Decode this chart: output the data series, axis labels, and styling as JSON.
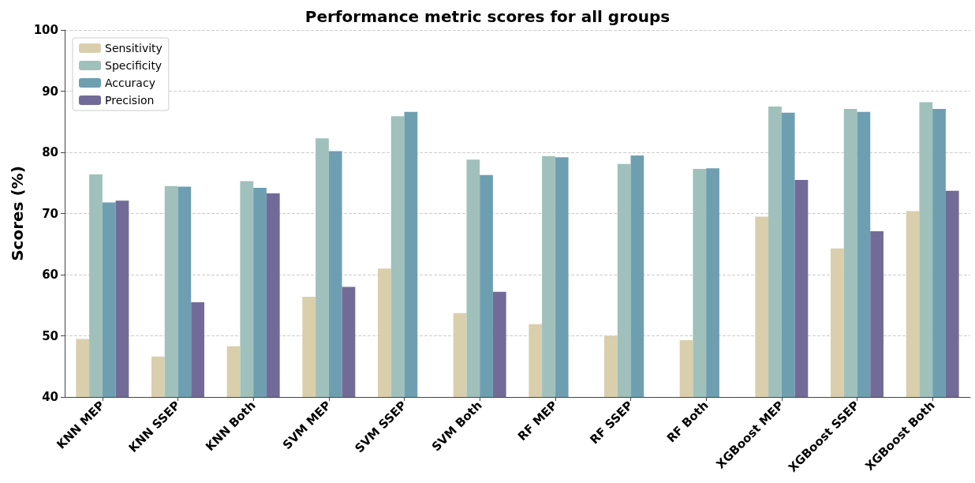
{
  "chart_data": {
    "type": "bar",
    "title": "Performance metric scores for all groups",
    "ylabel": "Scores (%)",
    "categories": [
      "KNN MEP",
      "KNN SSEP",
      "KNN Both",
      "SVM MEP",
      "SVM SSEP",
      "SVM Both",
      "RF MEP",
      "RF SSEP",
      "RF Both",
      "XGBoost MEP",
      "XGBoost SSEP",
      "XGBoost Both"
    ],
    "series": [
      {
        "name": "Sensitivity",
        "color": "#d9cfac",
        "values": [
          49.5,
          46.6,
          48.3,
          56.4,
          61.0,
          53.7,
          51.9,
          50.0,
          49.3,
          69.5,
          64.3,
          70.4
        ]
      },
      {
        "name": "Specificity",
        "color": "#a0c0bb",
        "values": [
          76.4,
          74.5,
          75.3,
          82.3,
          85.9,
          78.8,
          79.4,
          78.1,
          77.3,
          87.5,
          87.1,
          88.2
        ]
      },
      {
        "name": "Accuracy",
        "color": "#6e9fb1",
        "values": [
          71.8,
          74.4,
          74.2,
          80.2,
          86.6,
          76.3,
          79.2,
          79.5,
          77.4,
          86.5,
          86.6,
          87.1
        ]
      },
      {
        "name": "Precision",
        "color": "#736b97",
        "values": [
          72.1,
          55.5,
          73.3,
          58.0,
          null,
          57.2,
          null,
          null,
          null,
          75.5,
          67.1,
          73.7
        ]
      }
    ],
    "ylim": [
      40,
      100
    ],
    "yticks": [
      40,
      50,
      60,
      70,
      80,
      90,
      100
    ],
    "grid": "y",
    "legend": "top left"
  }
}
